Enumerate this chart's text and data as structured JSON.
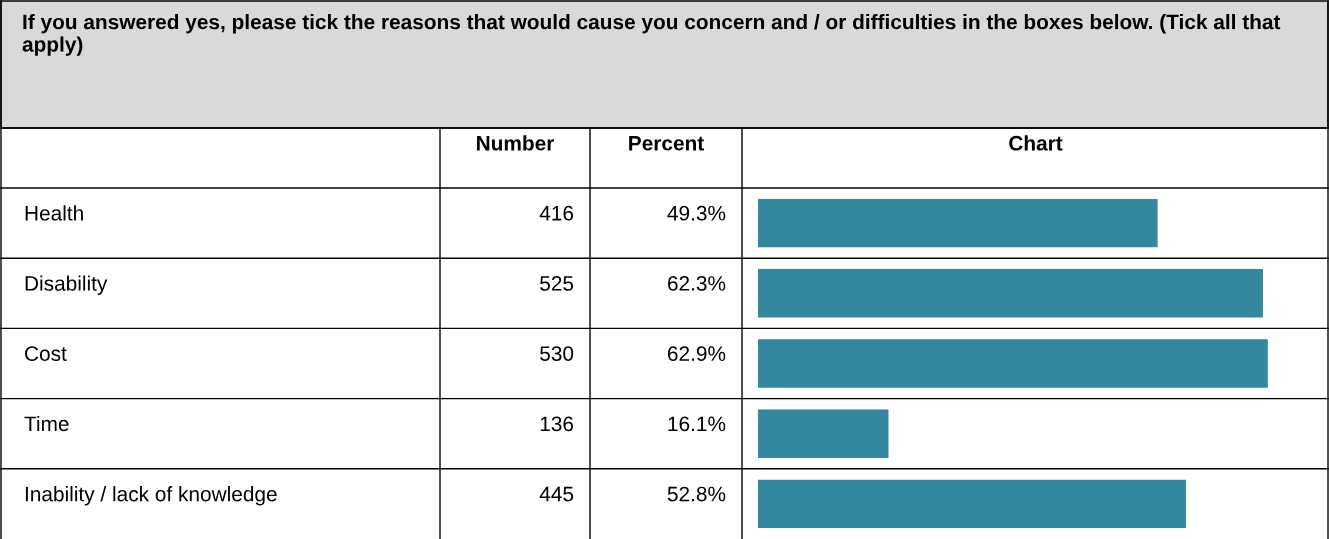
{
  "chart_data": {
    "type": "bar",
    "orientation": "horizontal",
    "title": "If you answered yes, please tick the reasons that would cause you concern and / or difficulties in the boxes below. (Tick all that apply)",
    "categories": [
      "Health",
      "Disability",
      "Cost",
      "Time",
      "Inability / lack of knowledge"
    ],
    "values": [
      49.3,
      62.3,
      62.9,
      16.1,
      52.8
    ],
    "value_labels": [
      "49.3%",
      "62.3%",
      "62.9%",
      "16.1%",
      "52.8%"
    ],
    "color": "#33889f",
    "annotations": [
      "Number",
      "Percent",
      "Chart",
      "416",
      "525",
      "530",
      "136",
      "445"
    ]
  }
}
